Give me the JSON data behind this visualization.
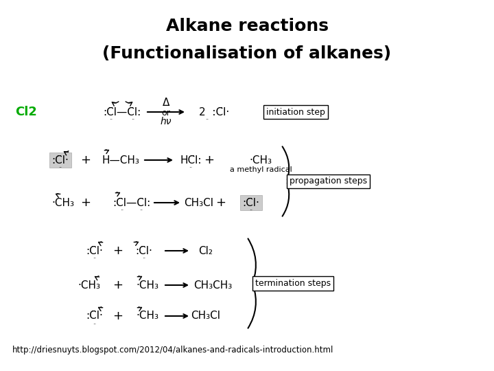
{
  "title_line1": "Alkane reactions",
  "title_line2": "(Functionalisation of alkanes)",
  "title_fontsize": 18,
  "title_color": "#000000",
  "cl2_label": "Cl2",
  "cl2_color": "#00aa00",
  "url": "http://driesnuyts.blogspot.com/2012/04/alkanes-and-radicals-introduction.html",
  "url_fontsize": 8.5,
  "bg_color": "#ffffff",
  "eq_fs": 10,
  "lbl_fs": 9
}
